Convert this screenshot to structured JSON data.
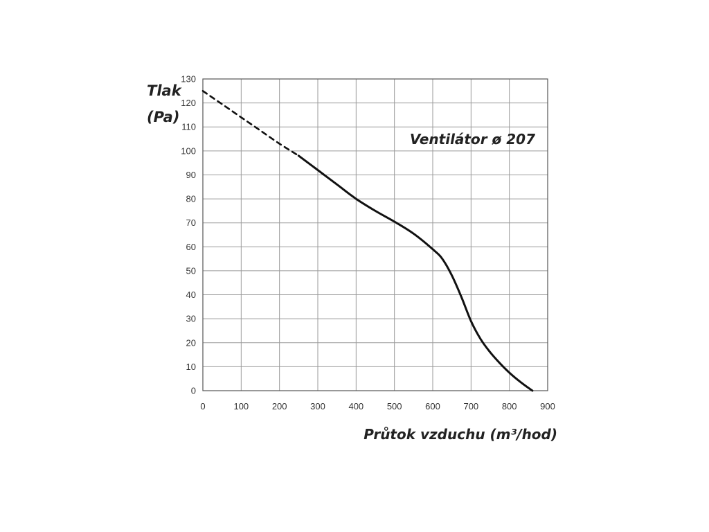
{
  "chart_data": {
    "type": "line",
    "title": "Ventilátor ø 207",
    "ylabel_line1": "Tlak",
    "ylabel_line2": "(Pa)",
    "xlabel": "Průtok vzduchu (m³/hod)",
    "xlim": [
      0,
      900
    ],
    "ylim": [
      0,
      130
    ],
    "x_ticks": [
      0,
      100,
      200,
      300,
      400,
      500,
      600,
      700,
      800,
      900
    ],
    "y_ticks": [
      0,
      10,
      20,
      30,
      40,
      50,
      60,
      70,
      80,
      90,
      100,
      110,
      120,
      130
    ],
    "grid": true,
    "colors": {
      "grid": "#9a9a9a",
      "curve": "#111111",
      "text": "#222222"
    },
    "series": [
      {
        "style": "dashed",
        "x": [
          0,
          50,
          100,
          150,
          200,
          250
        ],
        "y": [
          125,
          119.5,
          114,
          108.5,
          103,
          98
        ]
      },
      {
        "style": "solid",
        "x": [
          250,
          300,
          350,
          400,
          450,
          500,
          550,
          600,
          625,
          650,
          675,
          700,
          725,
          750,
          775,
          800,
          830,
          860
        ],
        "y": [
          98,
          92,
          86,
          80,
          75,
          70.5,
          65.5,
          59,
          55,
          48,
          39,
          29,
          21.5,
          16,
          11.5,
          7.5,
          3.5,
          0
        ]
      }
    ]
  }
}
